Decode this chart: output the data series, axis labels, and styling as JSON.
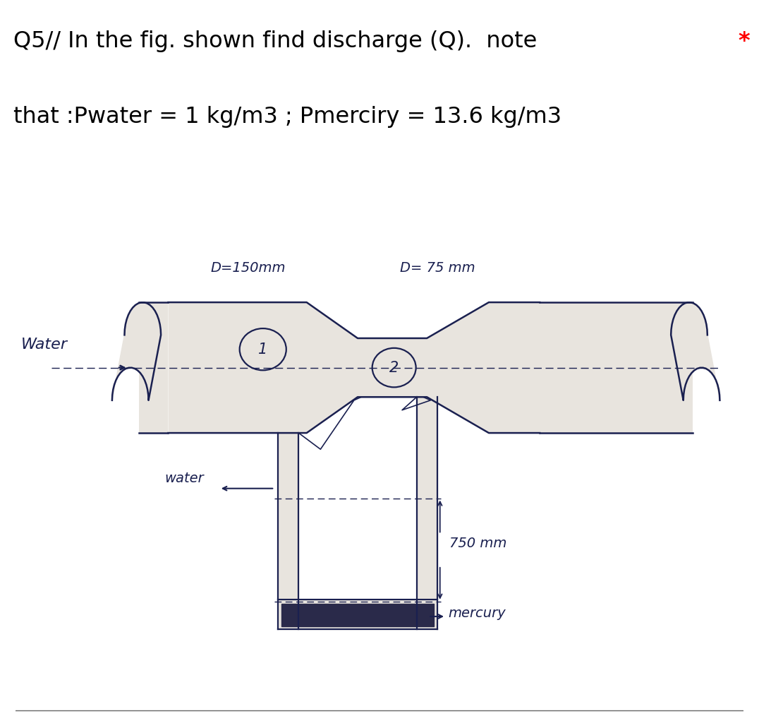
{
  "title_line1": "Q5// In the fig. shown find discharge (Q).  note",
  "title_line2": "that :Pwater = 1 kg/m3 ; Pmerciry = 13.6 kg/m3",
  "asterisk": "*",
  "bg_color_top": "#ffffff",
  "bg_color_diagram": "#b8b8b8",
  "pipe_fill": "#e8e4de",
  "ink_color": "#1a2050",
  "mercury_fill": "#2a2a4a",
  "label_d1": "D=150mm",
  "label_d2": "D= 75 mm",
  "label_water_left": "Water",
  "label_water_bottom": "water",
  "label_mercury": "mercury",
  "label_750": "750 mm",
  "circle1_label": "1",
  "circle2_label": "2",
  "title_fontsize": 23,
  "diagram_fontsize": 14
}
